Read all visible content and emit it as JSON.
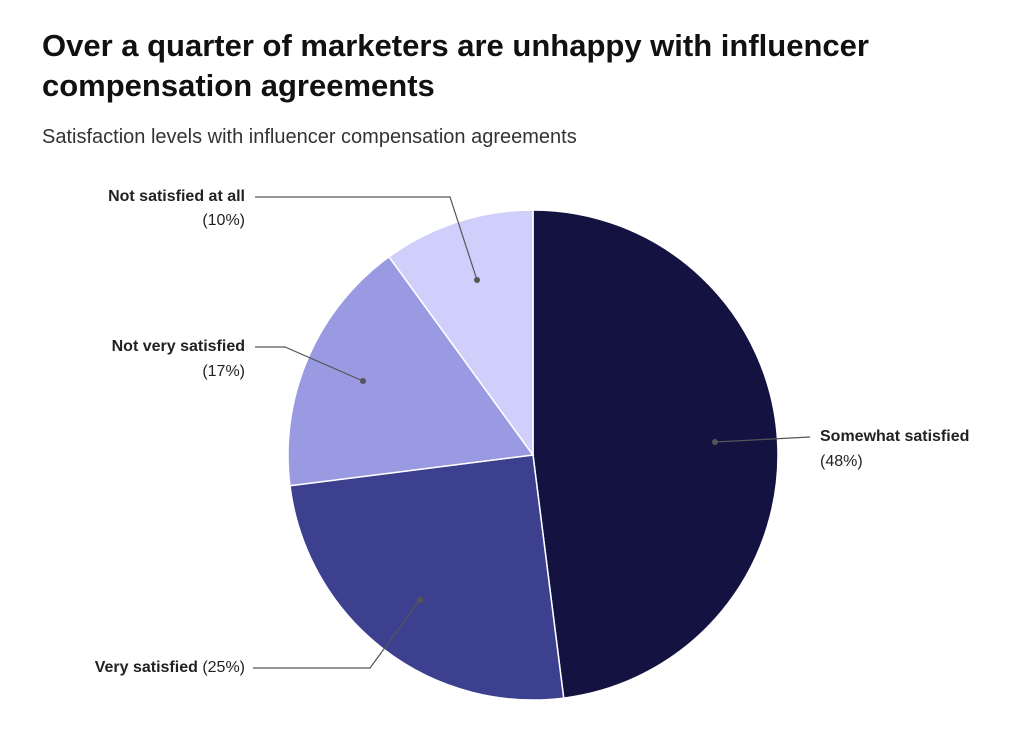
{
  "chart_data": {
    "type": "pie",
    "title": "Over a quarter of marketers are unhappy with influencer compensation agreements",
    "subtitle": "Satisfaction levels with influencer compensation agreements",
    "categories": [
      "Somewhat satisfied",
      "Very satisfied",
      "Not very satisfied",
      "Not satisfied at all"
    ],
    "values": [
      48,
      25,
      17,
      10
    ],
    "value_labels": [
      "(48%)",
      "(25%)",
      "(17%)",
      "(10%)"
    ],
    "colors": [
      "#141240",
      "#3d3f8f",
      "#9a9ae2",
      "#d0cffb"
    ]
  }
}
